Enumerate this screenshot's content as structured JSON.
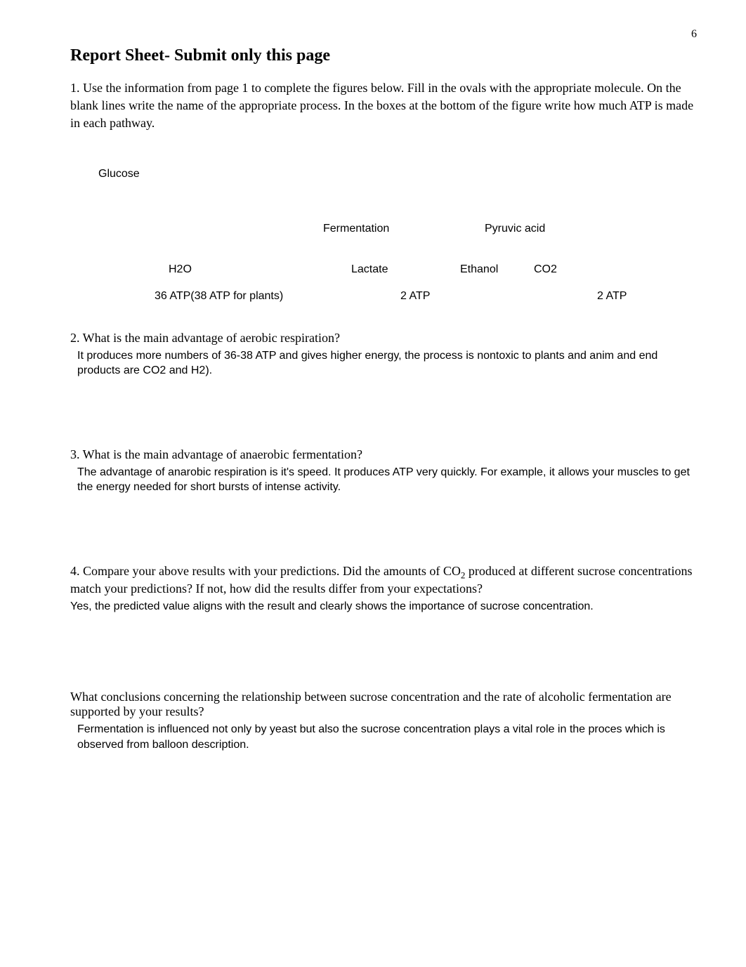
{
  "page_number": "6",
  "title": "Report Sheet- Submit only this page",
  "question1": {
    "text": "1.  Use the information from page 1 to complete the figures below.  Fill in the ovals with the appropriate molecule.  On the blank lines write the name of the appropriate process.  In the boxes at the bottom of the figure write how much ATP is made in each pathway."
  },
  "diagram": {
    "glucose": "Glucose",
    "fermentation": "Fermentation",
    "pyruvic_acid": "Pyruvic acid",
    "h2o": "H2O",
    "lactate": "Lactate",
    "ethanol": "Ethanol",
    "co2": "CO2",
    "atp_aerobic": "36 ATP(38 ATP for plants)",
    "atp_lactate": "2 ATP",
    "atp_ethanol": "2 ATP"
  },
  "question2": {
    "heading": "2.  What is the main advantage of aerobic respiration?",
    "answer": "It produces more numbers of 36-38 ATP and gives higher energy, the process is nontoxic to plants and anim and end products are CO2 and H2)."
  },
  "question3": {
    "heading": "3.  What is the main advantage of anaerobic fermentation?",
    "answer": "The advantage of anarobic respiration is it's speed. It produces ATP very quickly. For example, it allows your muscles to get the energy needed for short bursts of intense activity."
  },
  "question4": {
    "text_prefix": "4.  Compare your above results with your predictions.  Did the amounts of CO",
    "text_sub": "2",
    "text_suffix": " produced at different sucrose concentrations match your predictions?   If not, how did the results differ from your expectations?",
    "answer": "Yes, the predicted value aligns with the result and clearly shows the importance of sucrose concentration."
  },
  "question5": {
    "heading": "What conclusions concerning the relationship between sucrose concentration and the rate of alcoholic fermentation are supported by your results?",
    "answer": "Fermentation is influenced not only by yeast but also the sucrose concentration plays a vital role in the proces which is observed from balloon description."
  }
}
